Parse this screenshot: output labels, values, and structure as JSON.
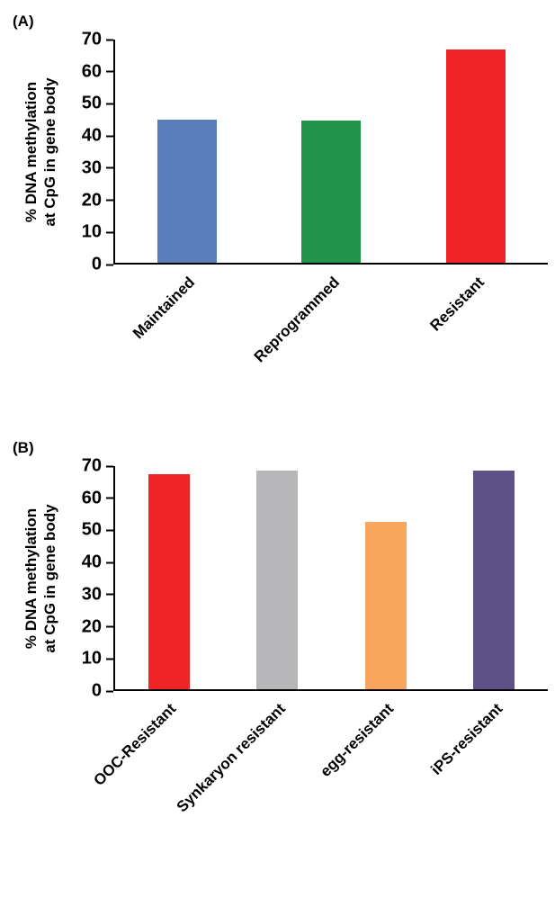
{
  "figure": {
    "panel_a_label": "(A)",
    "panel_b_label": "(B)"
  },
  "chart_data": [
    {
      "id": "chart-a",
      "type": "bar",
      "title": "",
      "xlabel": "",
      "ylabel": "% DNA methylation\nat CpG in gene body",
      "categories": [
        "Maintained",
        "Reprogrammed",
        "Resistant"
      ],
      "values": [
        45,
        44.5,
        67
      ],
      "colors": [
        "#5b7db9",
        "#23954a",
        "#ee2426"
      ],
      "ylim": [
        0,
        70
      ],
      "yticks": [
        0,
        10,
        20,
        30,
        40,
        50,
        60,
        70
      ],
      "grid": false,
      "legend": false
    },
    {
      "id": "chart-b",
      "type": "bar",
      "title": "",
      "xlabel": "",
      "ylabel": "% DNA methylation\nat CpG in gene body",
      "categories": [
        "OOC-Resistant",
        "Synkaryon resistant",
        "egg-resistant",
        "iPS-resistant"
      ],
      "values": [
        67.5,
        68.5,
        52.5,
        68.5
      ],
      "colors": [
        "#ee2426",
        "#b7b7b9",
        "#f9a55d",
        "#5d5187"
      ],
      "ylim": [
        0,
        70
      ],
      "yticks": [
        0,
        10,
        20,
        30,
        40,
        50,
        60,
        70
      ],
      "grid": false,
      "legend": false
    }
  ]
}
